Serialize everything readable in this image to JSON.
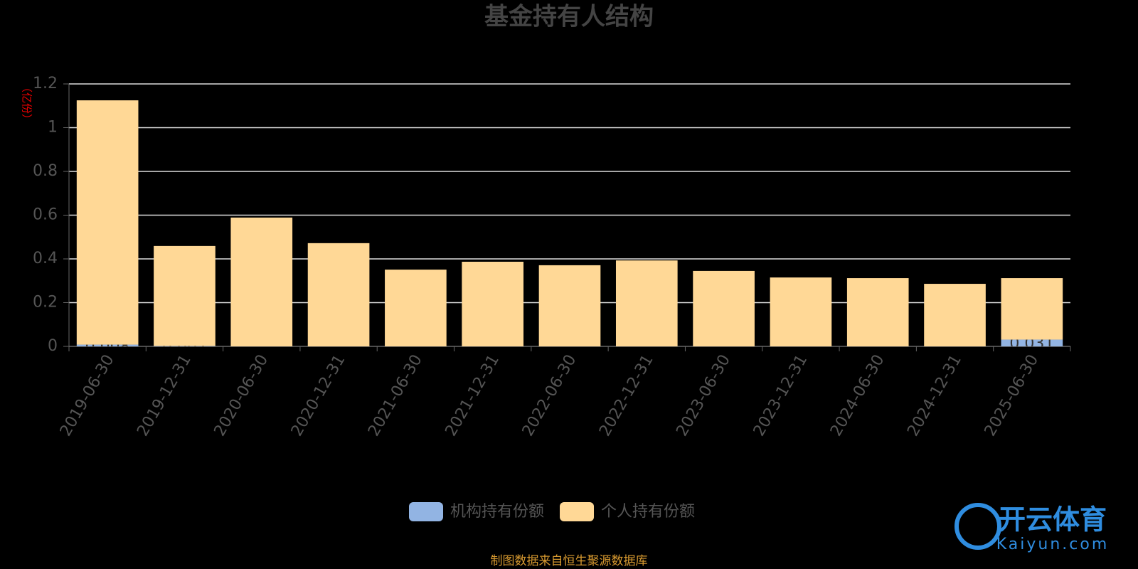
{
  "chart_data": {
    "type": "stacked-bar",
    "title": "基金持有人结构",
    "y_label": "（亿份）",
    "categories": [
      "2019-06-30",
      "2019-12-31",
      "2020-06-30",
      "2020-12-31",
      "2021-06-30",
      "2021-12-31",
      "2022-06-30",
      "2022-12-31",
      "2023-06-30",
      "2023-12-31",
      "2024-06-30",
      "2024-12-31",
      "2025-06-30"
    ],
    "series": [
      {
        "name": "机构持有份额",
        "color": "#92b4e3",
        "values": [
          0.008,
          0.002,
          0,
          0,
          0,
          0,
          0,
          0,
          0,
          0,
          0,
          0,
          0.031
        ]
      },
      {
        "name": "个人持有份额",
        "color": "#ffd896",
        "values": [
          1.117,
          0.457,
          0.589,
          0.472,
          0.351,
          0.387,
          0.371,
          0.393,
          0.345,
          0.315,
          0.312,
          0.286,
          0.281
        ]
      }
    ],
    "ylim": [
      0,
      1.2
    ],
    "yticks": [
      0,
      0.2,
      0.4,
      0.6,
      0.8,
      1,
      1.2
    ],
    "grid": true,
    "source": "制图数据来自恒生聚源数据库",
    "watermark": {
      "name": "开云体育",
      "url": "Kaiyun.com"
    }
  }
}
